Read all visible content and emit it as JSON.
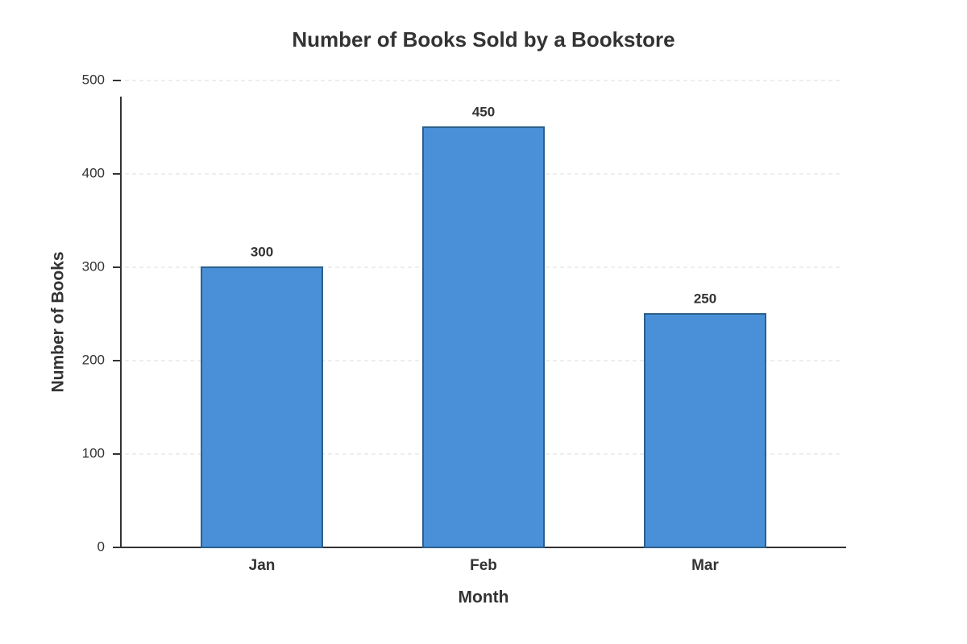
{
  "chart_data": {
    "type": "bar",
    "title": "Number of Books Sold by a Bookstore",
    "x_label": "Month",
    "y_label": "Number of Books",
    "categories": [
      "Jan",
      "Feb",
      "Mar"
    ],
    "values": [
      300,
      450,
      250
    ],
    "color": "#4a90d9",
    "edge_color": "#2c5f8a",
    "ylim": [
      0,
      500
    ],
    "yticks": [
      0,
      100,
      200,
      300,
      400,
      500
    ],
    "grid": true
  }
}
